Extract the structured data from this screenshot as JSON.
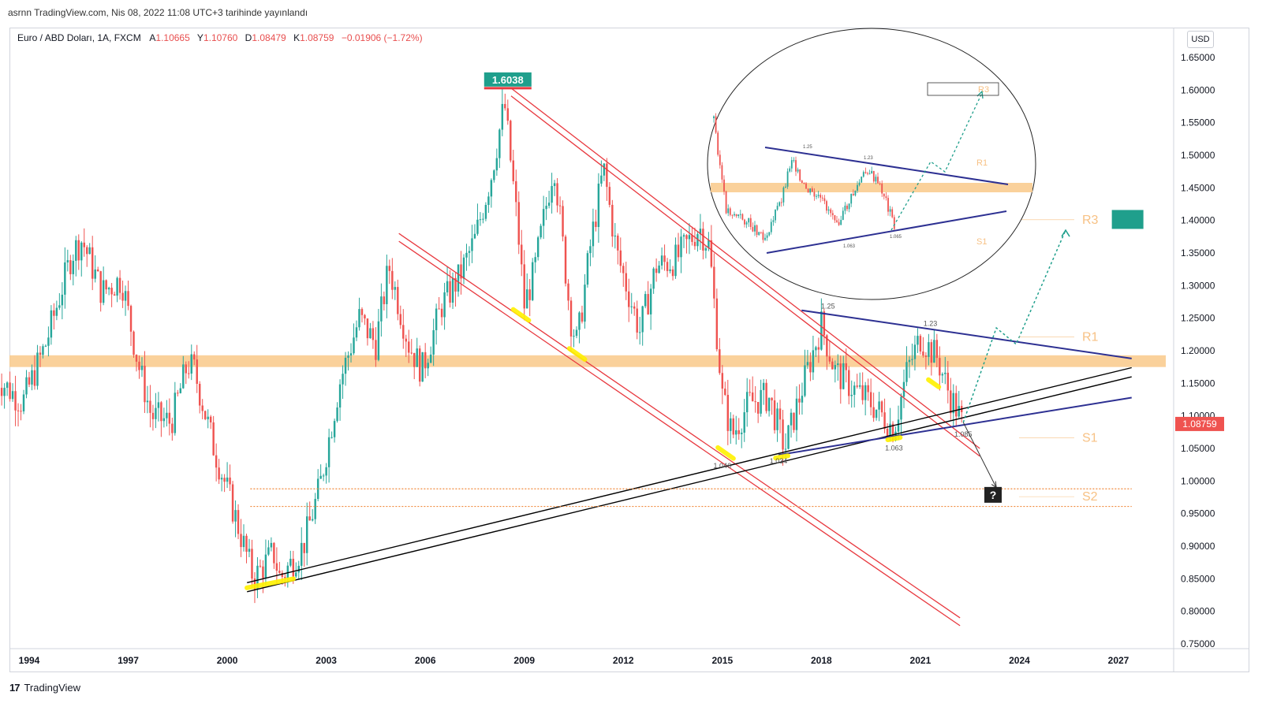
{
  "header": {
    "publisher_line": "asrnn TradingView.com, Nis 08, 2022 11:08 UTC+3 tarihinde yayınlandı"
  },
  "legend": {
    "symbol": "Euro / ABD Doları, 1A, FXCM",
    "open_label": "A",
    "open_value": "1.10665",
    "high_label": "Y",
    "high_value": "1.10760",
    "low_label": "D",
    "low_value": "1.08479",
    "close_label": "K",
    "close_value": "1.08759",
    "change": "−0.01906 (−1.72%)"
  },
  "currency_button": "USD",
  "footer": {
    "brand": "TradingView",
    "brand_mark": "17"
  },
  "colors": {
    "bull": "#26a69a",
    "bear": "#ef5350",
    "zone": "#f9c98a",
    "channel": "#e8393f",
    "trend_black": "#000000",
    "trend_navy": "#2d3092",
    "target_teal": "#1f9f8c",
    "label_orange": "#f7c184"
  },
  "chart_data": {
    "type": "candlestick",
    "symbol": "EURUSD",
    "timeframe": "1 month",
    "x_ticks": [
      "1994",
      "1997",
      "2000",
      "2003",
      "2006",
      "2009",
      "2012",
      "2015",
      "2018",
      "2021",
      "2024",
      "2027"
    ],
    "y_ticks": [
      "1.65000",
      "1.60000",
      "1.55000",
      "1.50000",
      "1.45000",
      "1.40000",
      "1.35000",
      "1.30000",
      "1.25000",
      "1.20000",
      "1.15000",
      "1.10000",
      "1.05000",
      "1.00000",
      "0.95000",
      "0.90000",
      "0.85000",
      "0.80000",
      "0.75000"
    ],
    "ylim": [
      0.75,
      1.67
    ],
    "xlim": [
      1993.2,
      2028.5
    ],
    "price_path": [
      [
        1993.0,
        1.16
      ],
      [
        1993.8,
        1.12
      ],
      [
        1994.5,
        1.21
      ],
      [
        1995.3,
        1.35
      ],
      [
        1995.6,
        1.37
      ],
      [
        1996.2,
        1.29
      ],
      [
        1996.8,
        1.31
      ],
      [
        1997.3,
        1.18
      ],
      [
        1997.7,
        1.1
      ],
      [
        1998.3,
        1.09
      ],
      [
        1998.8,
        1.18
      ],
      [
        1999.0,
        1.17
      ],
      [
        1999.6,
        1.05
      ],
      [
        2000.1,
        0.97
      ],
      [
        2000.8,
        0.85
      ],
      [
        2001.4,
        0.89
      ],
      [
        2001.6,
        0.85
      ],
      [
        2002.3,
        0.9
      ],
      [
        2002.8,
        0.99
      ],
      [
        2003.4,
        1.15
      ],
      [
        2004.0,
        1.25
      ],
      [
        2004.5,
        1.21
      ],
      [
        2004.9,
        1.33
      ],
      [
        2005.5,
        1.21
      ],
      [
        2005.9,
        1.17
      ],
      [
        2006.5,
        1.27
      ],
      [
        2007.0,
        1.31
      ],
      [
        2007.5,
        1.37
      ],
      [
        2008.0,
        1.47
      ],
      [
        2008.4,
        1.58
      ],
      [
        2008.8,
        1.39
      ],
      [
        2009.0,
        1.27
      ],
      [
        2009.3,
        1.32
      ],
      [
        2009.9,
        1.49
      ],
      [
        2010.4,
        1.25
      ],
      [
        2010.6,
        1.21
      ],
      [
        2011.0,
        1.36
      ],
      [
        2011.4,
        1.48
      ],
      [
        2011.8,
        1.35
      ],
      [
        2012.5,
        1.23
      ],
      [
        2013.0,
        1.33
      ],
      [
        2013.6,
        1.34
      ],
      [
        2014.3,
        1.39
      ],
      [
        2014.6,
        1.36
      ],
      [
        2015.0,
        1.13
      ],
      [
        2015.3,
        1.07
      ],
      [
        2015.8,
        1.12
      ],
      [
        2016.4,
        1.13
      ],
      [
        2016.9,
        1.05
      ],
      [
        2017.4,
        1.14
      ],
      [
        2018.0,
        1.24
      ],
      [
        2018.4,
        1.17
      ],
      [
        2019.0,
        1.14
      ],
      [
        2019.5,
        1.12
      ],
      [
        2020.2,
        1.08
      ],
      [
        2020.6,
        1.17
      ],
      [
        2021.0,
        1.22
      ],
      [
        2021.5,
        1.19
      ],
      [
        2021.9,
        1.13
      ],
      [
        2022.1,
        1.11
      ],
      [
        2022.27,
        1.088
      ]
    ],
    "last_price": "1.08759",
    "high_label": "1.6038",
    "point_labels": [
      "1.25",
      "1.23",
      "1.046",
      "1.034",
      "1.063",
      "1.085"
    ],
    "level_labels": [
      "R1",
      "R3",
      "S1",
      "S2"
    ],
    "unknown_marker": "?",
    "inset_labels": [
      "1.25",
      "1.23",
      "1.063",
      "1.065",
      "R1",
      "R3",
      "S1"
    ],
    "support_zone": [
      1.175,
      1.193
    ],
    "dotted_levels": [
      0.988,
      0.961
    ],
    "lines": {
      "channel_upper": [
        [
          2008.6,
          1.603
        ],
        [
          2022.8,
          1.05
        ]
      ],
      "channel_lower": [
        [
          2005.2,
          1.38
        ],
        [
          2022.2,
          0.79
        ]
      ],
      "trend_black": [
        [
          2000.6,
          0.83
        ],
        [
          2027.4,
          1.16
        ]
      ],
      "trend_navy_upper": [
        [
          2017.4,
          1.262
        ],
        [
          2027.4,
          1.188
        ]
      ],
      "trend_navy_lower": [
        [
          2016.7,
          1.04
        ],
        [
          2027.4,
          1.128
        ]
      ]
    },
    "projection_up": [
      [
        2022.3,
        1.09
      ],
      [
        2023.3,
        1.235
      ],
      [
        2023.9,
        1.21
      ],
      [
        2025.4,
        1.385
      ]
    ],
    "projection_down": [
      [
        2022.3,
        1.09
      ],
      [
        2023.3,
        0.99
      ]
    ]
  }
}
